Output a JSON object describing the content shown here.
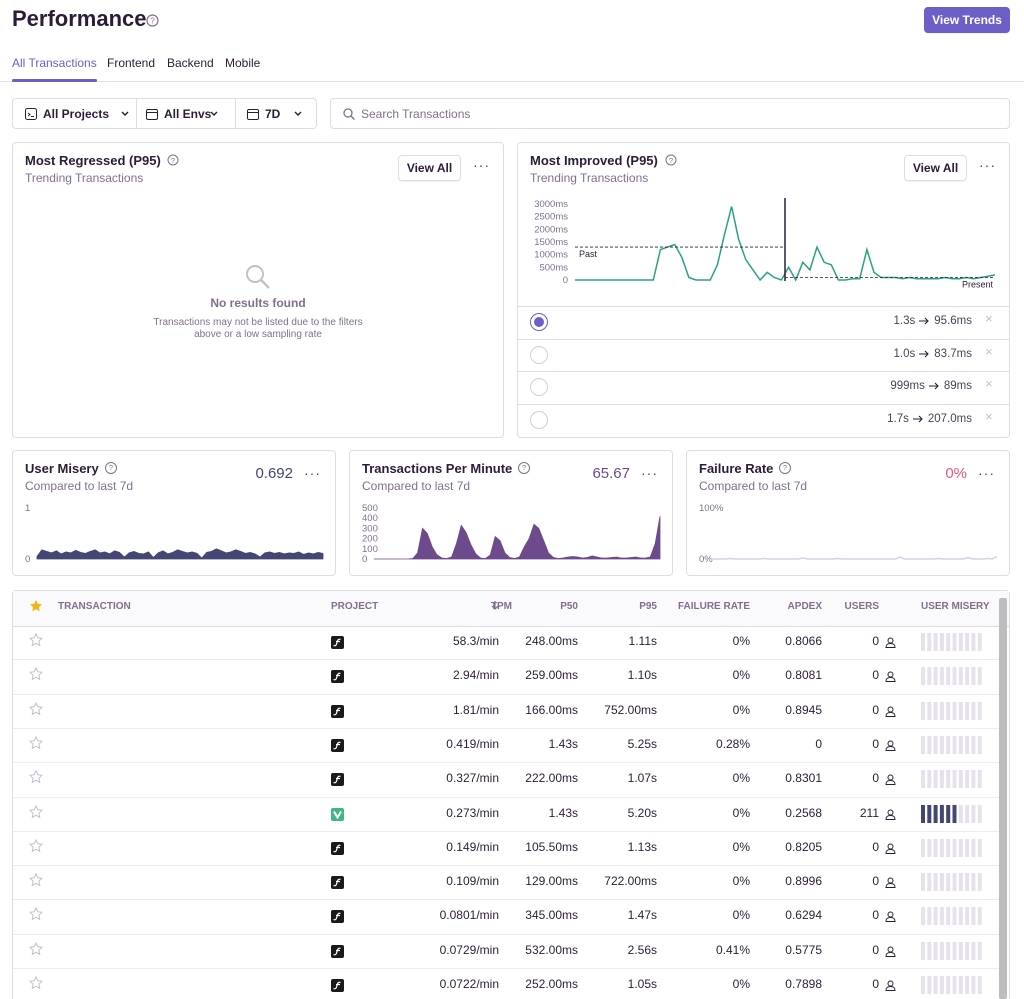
{
  "header": {
    "title": "Performance",
    "button": "View Trends"
  },
  "tabs": [
    "All Transactions",
    "Frontend",
    "Backend",
    "Mobile"
  ],
  "active_tab": 0,
  "filters": {
    "projects": "All Projects",
    "envs": "All Envs",
    "period": "7D",
    "search_placeholder": "Search Transactions"
  },
  "regressed": {
    "title": "Most Regressed (P95)",
    "subtitle": "Trending Transactions",
    "button": "View All",
    "empty_title": "No results found",
    "empty_text": "Transactions may not be listed due to the filters above or a low sampling rate"
  },
  "improved": {
    "title": "Most Improved (P95)",
    "subtitle": "Trending Transactions",
    "button": "View All",
    "chart_data": {
      "type": "line",
      "color": "#2ba185",
      "ylim": [
        0,
        3000
      ],
      "yticks": [
        {
          "value": 0,
          "label": "0"
        },
        {
          "value": 500,
          "label": "500ms"
        },
        {
          "value": 1000,
          "label": "1000ms"
        },
        {
          "value": 1500,
          "label": "1500ms"
        },
        {
          "value": 2000,
          "label": "2000ms"
        },
        {
          "value": 2500,
          "label": "2500ms"
        },
        {
          "value": 3000,
          "label": "3000ms"
        }
      ],
      "values": [
        0,
        0,
        0,
        0,
        0,
        0,
        0,
        0,
        0,
        0,
        0,
        0,
        1200,
        1300,
        1400,
        900,
        100,
        0,
        0,
        0,
        600,
        1800,
        2900,
        1600,
        800,
        400,
        0,
        300,
        100,
        0,
        500,
        0,
        700,
        400,
        1300,
        700,
        600,
        0,
        0,
        50,
        50,
        1200,
        300,
        100,
        100,
        100,
        50,
        100,
        50,
        50,
        50,
        50,
        100,
        50,
        50,
        100,
        50,
        100,
        150,
        200
      ],
      "reference_lines": [
        {
          "label": "Past",
          "value": 1300
        },
        {
          "label": "Present",
          "value": 100
        }
      ]
    },
    "items": [
      {
        "from": "1.3s",
        "to": "95.6ms"
      },
      {
        "from": "1.0s",
        "to": "83.7ms"
      },
      {
        "from": "999ms",
        "to": "89ms"
      },
      {
        "from": "1.7s",
        "to": "207.0ms"
      }
    ],
    "selected": 0
  },
  "widgets": [
    {
      "title": "User Misery",
      "subtitle": "Compared to last 7d",
      "value": "0.692",
      "value_color": "#444674",
      "chart_data": {
        "type": "area",
        "color": "#444674",
        "ylim": [
          0,
          1
        ],
        "yticks": [
          0,
          1
        ],
        "values": [
          0.05,
          0.18,
          0.15,
          0.12,
          0.16,
          0.1,
          0.14,
          0.12,
          0.17,
          0.13,
          0.11,
          0.15,
          0.18,
          0.12,
          0.14,
          0.1,
          0.16,
          0.13,
          0.04,
          0.12,
          0.15,
          0.11,
          0.1,
          0.14,
          0.03,
          0.12,
          0.16,
          0.1,
          0.13,
          0.18,
          0.15,
          0.12,
          0.14,
          0.11,
          0.02,
          0.13,
          0.15,
          0.2,
          0.16,
          0.12,
          0.14,
          0.18,
          0.15,
          0.11,
          0.13,
          0.1,
          0.04,
          0.12,
          0.14,
          0.11,
          0.13,
          0.1,
          0.12,
          0.11,
          0.14,
          0.09,
          0.12,
          0.1,
          0.13,
          0.11
        ]
      }
    },
    {
      "title": "Transactions Per Minute",
      "subtitle": "Compared to last 7d",
      "value": "65.67",
      "value_color": "#6c4a8c",
      "chart_data": {
        "type": "area",
        "color": "#6c4a8c",
        "ylim": [
          0,
          500
        ],
        "yticks": [
          0,
          100,
          200,
          300,
          400,
          500
        ],
        "values": [
          0,
          0,
          0,
          0,
          0,
          0,
          0,
          0,
          5,
          60,
          300,
          250,
          120,
          40,
          10,
          5,
          20,
          150,
          330,
          260,
          140,
          50,
          10,
          5,
          40,
          220,
          180,
          60,
          15,
          5,
          20,
          120,
          200,
          340,
          300,
          180,
          60,
          15,
          5,
          10,
          20,
          25,
          20,
          10,
          15,
          30,
          20,
          10,
          10,
          15,
          20,
          10,
          10,
          15,
          20,
          10,
          10,
          20,
          150,
          420
        ]
      }
    },
    {
      "title": "Failure Rate",
      "subtitle": "Compared to last 7d",
      "value": "0%",
      "value_color": "#e1567c",
      "chart_data": {
        "type": "line",
        "color": "#d8cfe3",
        "ylim": [
          0,
          100
        ],
        "yticks": [
          {
            "value": 0,
            "label": "0%"
          },
          {
            "value": 100,
            "label": "100%"
          }
        ],
        "values": [
          0,
          0,
          0,
          0,
          1,
          0,
          0,
          0,
          0,
          0,
          0,
          1,
          0,
          0,
          0,
          0,
          0,
          0,
          0,
          2,
          0,
          0,
          0,
          0,
          0,
          0,
          1,
          0,
          0,
          0,
          0,
          0,
          0,
          0,
          0,
          0,
          0,
          0,
          0,
          4,
          0,
          0,
          0,
          0,
          0,
          0,
          0,
          1,
          0,
          0,
          0,
          0,
          0,
          3,
          0,
          0,
          0,
          1,
          0,
          5
        ]
      }
    }
  ],
  "table": {
    "columns": [
      "TRANSACTION",
      "PROJECT",
      "TPM",
      "P50",
      "P95",
      "FAILURE RATE",
      "APDEX",
      "USERS",
      "USER MISERY"
    ],
    "rows": [
      {
        "platform": "symfony",
        "tpm": "58.3/min",
        "p50": "248.00ms",
        "p95": "1.11s",
        "failure_rate": "0%",
        "apdex": "0.8066",
        "users": 0,
        "misery": 0
      },
      {
        "platform": "symfony",
        "tpm": "2.94/min",
        "p50": "259.00ms",
        "p95": "1.10s",
        "failure_rate": "0%",
        "apdex": "0.8081",
        "users": 0,
        "misery": 0
      },
      {
        "platform": "symfony",
        "tpm": "1.81/min",
        "p50": "166.00ms",
        "p95": "752.00ms",
        "failure_rate": "0%",
        "apdex": "0.8945",
        "users": 0,
        "misery": 0
      },
      {
        "platform": "symfony",
        "tpm": "0.419/min",
        "p50": "1.43s",
        "p95": "5.25s",
        "failure_rate": "0.28%",
        "apdex": "0",
        "users": 0,
        "misery": 0
      },
      {
        "platform": "symfony",
        "tpm": "0.327/min",
        "p50": "222.00ms",
        "p95": "1.07s",
        "failure_rate": "0%",
        "apdex": "0.8301",
        "users": 0,
        "misery": 0
      },
      {
        "platform": "vue",
        "tpm": "0.273/min",
        "p50": "1.43s",
        "p95": "5.20s",
        "failure_rate": "0%",
        "apdex": "0.2568",
        "users": 211,
        "misery": 6
      },
      {
        "platform": "symfony",
        "tpm": "0.149/min",
        "p50": "105.50ms",
        "p95": "1.13s",
        "failure_rate": "0%",
        "apdex": "0.8205",
        "users": 0,
        "misery": 0
      },
      {
        "platform": "symfony",
        "tpm": "0.109/min",
        "p50": "129.00ms",
        "p95": "722.00ms",
        "failure_rate": "0%",
        "apdex": "0.8996",
        "users": 0,
        "misery": 0
      },
      {
        "platform": "symfony",
        "tpm": "0.0801/min",
        "p50": "345.00ms",
        "p95": "1.47s",
        "failure_rate": "0%",
        "apdex": "0.6294",
        "users": 0,
        "misery": 0
      },
      {
        "platform": "symfony",
        "tpm": "0.0729/min",
        "p50": "532.00ms",
        "p95": "2.56s",
        "failure_rate": "0.41%",
        "apdex": "0.5775",
        "users": 0,
        "misery": 0
      },
      {
        "platform": "symfony",
        "tpm": "0.0722/min",
        "p50": "252.00ms",
        "p95": "1.05s",
        "failure_rate": "0%",
        "apdex": "0.7898",
        "users": 0,
        "misery": 0
      }
    ]
  }
}
